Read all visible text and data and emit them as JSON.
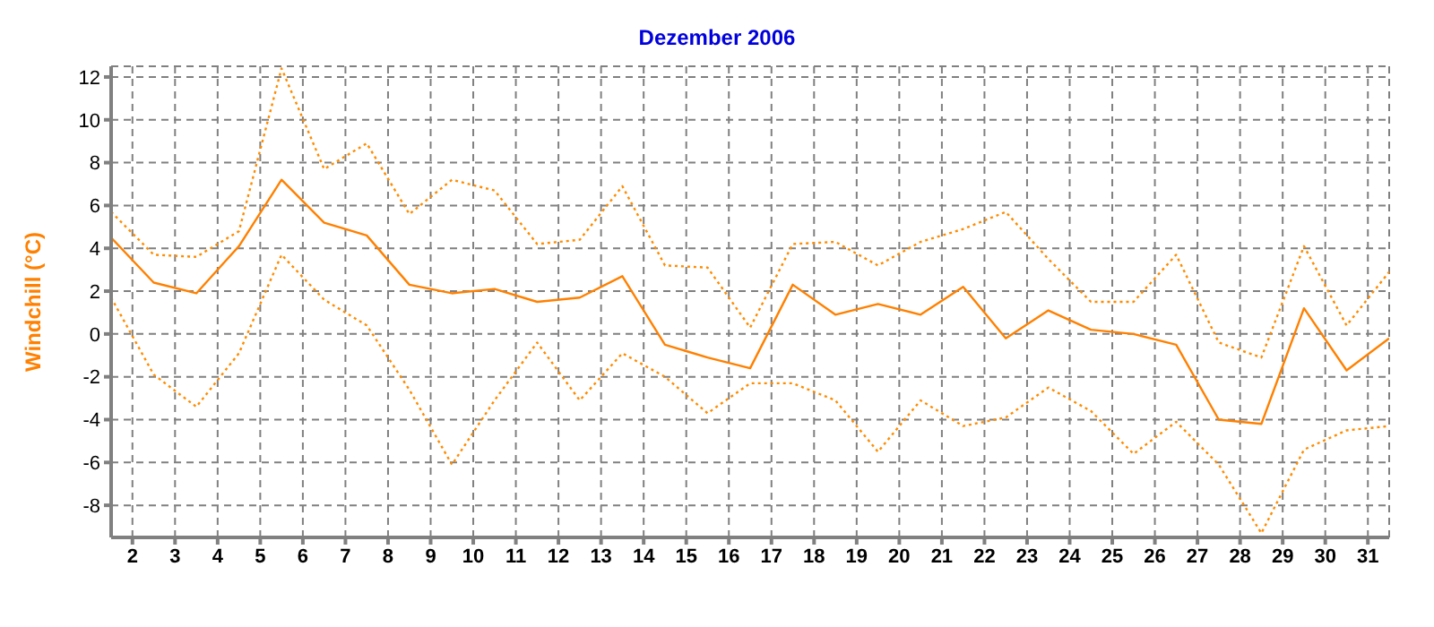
{
  "chart_data": {
    "type": "line",
    "title": "Dezember 2006",
    "ylabel": "Windchill  (°C)",
    "x": [
      1.5,
      2.5,
      3.5,
      4.5,
      5.5,
      6.5,
      7.5,
      8.5,
      9.5,
      10.5,
      11.5,
      12.5,
      13.5,
      14.5,
      15.5,
      16.5,
      17.5,
      18.5,
      19.5,
      20.5,
      21.5,
      22.5,
      23.5,
      24.5,
      25.5,
      26.5,
      27.5,
      28.5,
      29.5,
      30.5,
      31.5
    ],
    "series": [
      {
        "color": "#ff8c00",
        "line_style": "dotted",
        "values": [
          5.7,
          3.7,
          3.6,
          4.8,
          12.4,
          7.7,
          8.9,
          5.6,
          7.2,
          6.7,
          4.2,
          4.4,
          6.9,
          3.2,
          3.1,
          0.3,
          4.2,
          4.3,
          3.2,
          4.3,
          4.9,
          5.7,
          3.5,
          1.5,
          1.5,
          3.7,
          -0.4,
          -1.1,
          4.1,
          0.4,
          2.9
        ]
      },
      {
        "color": "#ff8000",
        "line_style": "solid",
        "values": [
          4.5,
          2.4,
          1.9,
          4.1,
          7.2,
          5.2,
          4.6,
          2.3,
          1.9,
          2.1,
          1.5,
          1.7,
          2.7,
          -0.5,
          -1.1,
          -1.6,
          2.3,
          0.9,
          1.4,
          0.9,
          2.2,
          -0.2,
          1.1,
          0.2,
          0.0,
          -0.5,
          -4.0,
          -4.2,
          1.2,
          -1.7,
          -0.2
        ]
      },
      {
        "color": "#ff8c00",
        "line_style": "dotted",
        "values": [
          1.7,
          -1.9,
          -3.4,
          -0.9,
          3.7,
          1.6,
          0.4,
          -2.6,
          -6.1,
          -3.1,
          -0.4,
          -3.1,
          -0.9,
          -2.0,
          -3.7,
          -2.3,
          -2.3,
          -3.1,
          -5.5,
          -3.1,
          -4.3,
          -3.9,
          -2.5,
          -3.6,
          -5.6,
          -4.1,
          -6.1,
          -9.3,
          -5.4,
          -4.5,
          -4.3
        ]
      }
    ],
    "xlim": [
      1.5,
      31.5
    ],
    "xticks": [
      2,
      3,
      4,
      5,
      6,
      7,
      8,
      9,
      10,
      11,
      12,
      13,
      14,
      15,
      16,
      17,
      18,
      19,
      20,
      21,
      22,
      23,
      24,
      25,
      26,
      27,
      28,
      29,
      30,
      31
    ],
    "ylim": [
      -9.5,
      12.5
    ],
    "yticks": [
      -8,
      -6,
      -4,
      -2,
      0,
      2,
      4,
      6,
      8,
      10,
      12
    ],
    "grid": true,
    "marker": "none",
    "legend": false
  }
}
